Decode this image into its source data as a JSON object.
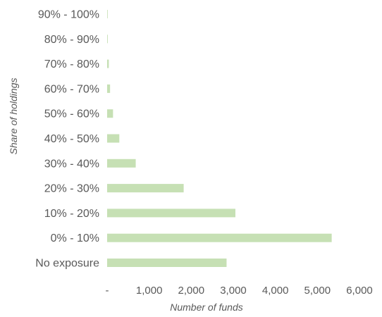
{
  "chart_data": {
    "type": "bar",
    "orientation": "horizontal",
    "categories": [
      "No exposure",
      "0% - 10%",
      "10% - 20%",
      "20% - 30%",
      "30% - 40%",
      "40% - 50%",
      "50% - 60%",
      "60% - 70%",
      "70% - 80%",
      "80% - 90%",
      "90% - 100%"
    ],
    "series": [
      {
        "values": [
          2840,
          5340,
          3050,
          1820,
          680,
          290,
          140,
          70,
          40,
          15,
          5
        ]
      }
    ],
    "xlabel": "Number of funds",
    "ylabel": "Share of holdings",
    "xlim": [
      0,
      6000
    ],
    "x_ticks": [
      0,
      1000,
      2000,
      3000,
      4000,
      5000,
      6000
    ],
    "x_tick_labels": [
      "-",
      "1,000",
      "2,000",
      "3,000",
      "4,000",
      "5,000",
      "6,000"
    ],
    "grid": false,
    "legend": "none",
    "bar_color": "#c6e0b4"
  }
}
